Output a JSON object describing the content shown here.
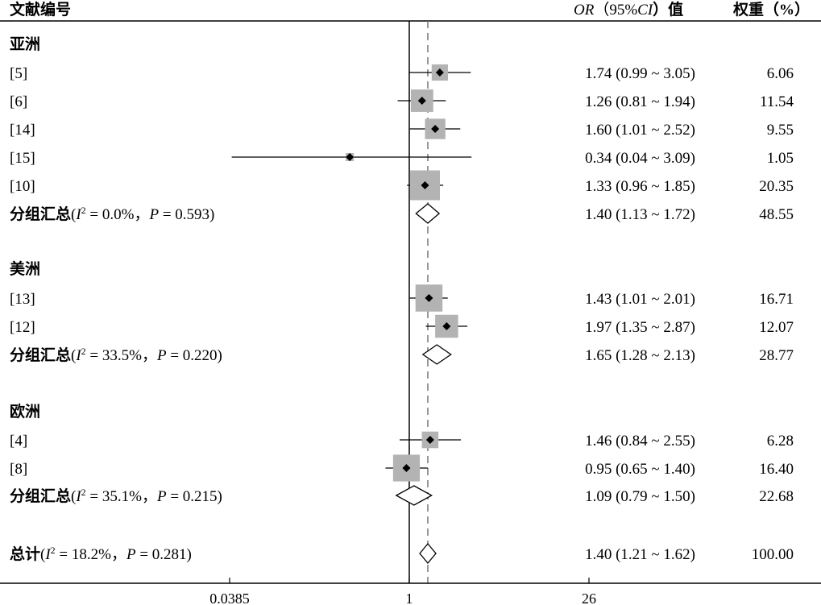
{
  "headers": {
    "study": "文献编号",
    "or_ci_prefix": "OR",
    "or_ci_middle": "（95%",
    "or_ci_ci": "CI",
    "or_ci_suffix": "）值",
    "weight": "权重（%）"
  },
  "chart_data": {
    "type": "forest",
    "axis_scale": "log",
    "xlim": [
      0.0385,
      26
    ],
    "ticks": [
      "0.0385",
      "1",
      "26"
    ],
    "reference_line": 1,
    "overall_line": 1.4,
    "groups": [
      {
        "name": "亚洲",
        "studies": [
          {
            "label": "[5]",
            "or": 1.74,
            "lo": 0.99,
            "hi": 3.05,
            "ci_text": "1.74 (0.99 ~ 3.05)",
            "weight": 6.06,
            "weight_text": "6.06"
          },
          {
            "label": "[6]",
            "or": 1.26,
            "lo": 0.81,
            "hi": 1.94,
            "ci_text": "1.26 (0.81 ~ 1.94)",
            "weight": 11.54,
            "weight_text": "11.54"
          },
          {
            "label": "[14]",
            "or": 1.6,
            "lo": 1.01,
            "hi": 2.52,
            "ci_text": "1.60 (1.01 ~ 2.52)",
            "weight": 9.55,
            "weight_text": "9.55"
          },
          {
            "label": "[15]",
            "or": 0.34,
            "lo": 0.04,
            "hi": 3.09,
            "ci_text": "0.34 (0.04 ~ 3.09)",
            "weight": 1.05,
            "weight_text": "1.05"
          },
          {
            "label": "[10]",
            "or": 1.33,
            "lo": 0.96,
            "hi": 1.85,
            "ci_text": "1.33 (0.96 ~ 1.85)",
            "weight": 20.35,
            "weight_text": "20.35"
          }
        ],
        "subtotal": {
          "label": "分组汇总",
          "i2": "0.0%",
          "p": "0.593",
          "or": 1.4,
          "lo": 1.13,
          "hi": 1.72,
          "ci_text": "1.40 (1.13 ~ 1.72)",
          "weight_text": "48.55"
        }
      },
      {
        "name": "美洲",
        "studies": [
          {
            "label": "[13]",
            "or": 1.43,
            "lo": 1.01,
            "hi": 2.01,
            "ci_text": "1.43 (1.01 ~ 2.01)",
            "weight": 16.71,
            "weight_text": "16.71"
          },
          {
            "label": "[12]",
            "or": 1.97,
            "lo": 1.35,
            "hi": 2.87,
            "ci_text": "1.97 (1.35 ~ 2.87)",
            "weight": 12.07,
            "weight_text": "12.07"
          }
        ],
        "subtotal": {
          "label": "分组汇总",
          "i2": "33.5%",
          "p": "0.220",
          "or": 1.65,
          "lo": 1.28,
          "hi": 2.13,
          "ci_text": "1.65 (1.28 ~ 2.13)",
          "weight_text": "28.77"
        }
      },
      {
        "name": "欧洲",
        "studies": [
          {
            "label": "[4]",
            "or": 1.46,
            "lo": 0.84,
            "hi": 2.55,
            "ci_text": "1.46 (0.84 ~ 2.55)",
            "weight": 6.28,
            "weight_text": "6.28"
          },
          {
            "label": "[8]",
            "or": 0.95,
            "lo": 0.65,
            "hi": 1.4,
            "ci_text": "0.95 (0.65 ~ 1.40)",
            "weight": 16.4,
            "weight_text": "16.40"
          }
        ],
        "subtotal": {
          "label": "分组汇总",
          "i2": "35.1%",
          "p": "0.215",
          "or": 1.09,
          "lo": 0.79,
          "hi": 1.5,
          "ci_text": "1.09 (0.79 ~ 1.50)",
          "weight_text": "22.68"
        }
      }
    ],
    "overall": {
      "label": "总计",
      "i2": "18.2%",
      "p": "0.281",
      "or": 1.4,
      "lo": 1.21,
      "hi": 1.62,
      "ci_text": "1.40 (1.21 ~ 1.62)",
      "weight_text": "100.00"
    }
  }
}
